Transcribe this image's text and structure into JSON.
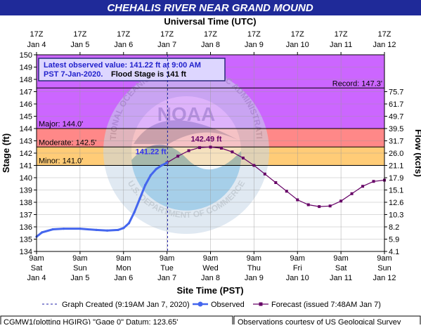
{
  "chart_data": {
    "type": "line",
    "title": "CHEHALIS RIVER NEAR GRAND MOUND",
    "top_axis_label": "Universal Time (UTC)",
    "bottom_axis_label": "Site Time (PST)",
    "ylabel_left": "Stage (ft)",
    "ylabel_right": "Flow (kcfs)",
    "ylim": [
      134,
      150
    ],
    "xlim": [
      "2020-01-04 09:00",
      "2020-01-12 09:00"
    ],
    "y_ticks": [
      134,
      135,
      136,
      137,
      138,
      139,
      140,
      141,
      142,
      143,
      144,
      145,
      146,
      147,
      148,
      149,
      150
    ],
    "flow_ticks": [
      {
        "stage": 134,
        "flow": "4.1"
      },
      {
        "stage": 135,
        "flow": "5.9"
      },
      {
        "stage": 136,
        "flow": "8.2"
      },
      {
        "stage": 137,
        "flow": "10.3"
      },
      {
        "stage": 138,
        "flow": "12.6"
      },
      {
        "stage": 139,
        "flow": "15.1"
      },
      {
        "stage": 140,
        "flow": "17.9"
      },
      {
        "stage": 141,
        "flow": "21.1"
      },
      {
        "stage": 142,
        "flow": "26.0"
      },
      {
        "stage": 143,
        "flow": "31.7"
      },
      {
        "stage": 144,
        "flow": "39.5"
      },
      {
        "stage": 145,
        "flow": "49.7"
      },
      {
        "stage": 146,
        "flow": "61.7"
      },
      {
        "stage": 147,
        "flow": "75.7"
      }
    ],
    "top_ticks": [
      {
        "l1": "17Z",
        "l2": "Jan 4"
      },
      {
        "l1": "17Z",
        "l2": "Jan 5"
      },
      {
        "l1": "17Z",
        "l2": "Jan 6"
      },
      {
        "l1": "17Z",
        "l2": "Jan 7"
      },
      {
        "l1": "17Z",
        "l2": "Jan 8"
      },
      {
        "l1": "17Z",
        "l2": "Jan 9"
      },
      {
        "l1": "17Z",
        "l2": "Jan 10"
      },
      {
        "l1": "17Z",
        "l2": "Jan 11"
      },
      {
        "l1": "17Z",
        "l2": "Jan 12"
      }
    ],
    "bottom_ticks": [
      {
        "l1": "9am",
        "l2": "Sat",
        "l3": "Jan 4"
      },
      {
        "l1": "9am",
        "l2": "Sun",
        "l3": "Jan 5"
      },
      {
        "l1": "9am",
        "l2": "Mon",
        "l3": "Jan 6"
      },
      {
        "l1": "9am",
        "l2": "Tue",
        "l3": "Jan 7"
      },
      {
        "l1": "9am",
        "l2": "Wed",
        "l3": "Jan 8"
      },
      {
        "l1": "9am",
        "l2": "Thu",
        "l3": "Jan 9"
      },
      {
        "l1": "9am",
        "l2": "Fri",
        "l3": "Jan 10"
      },
      {
        "l1": "9am",
        "l2": "Sat",
        "l3": "Jan 11"
      },
      {
        "l1": "9am",
        "l2": "Sun",
        "l3": "Jan 12"
      }
    ],
    "flood_categories": [
      {
        "label": "Record: 147.3'",
        "value": 147.3,
        "color": "#000000"
      },
      {
        "label": "Major: 144.0'",
        "value": 144.0,
        "color": "#cc66ff"
      },
      {
        "label": "Moderate: 142.5'",
        "value": 142.5,
        "color": "#ff8888"
      },
      {
        "label": "Minor: 141.0'",
        "value": 141.0,
        "color": "#ffcc77"
      }
    ],
    "bands": [
      {
        "from": 144.0,
        "to": 150,
        "color": "#cc66ff"
      },
      {
        "from": 142.5,
        "to": 144.0,
        "color": "#ff8888"
      },
      {
        "from": 141.0,
        "to": 142.5,
        "color": "#ffcc77"
      }
    ],
    "annotations": {
      "latest_label": "141.22 ft",
      "crest_label": "142.49 ft",
      "info_line1": "Latest observed value: 141.22 ft at 9:00 AM",
      "info_line2a": "PST 7-Jan-2020.",
      "info_line2b": "Flood Stage is 141 ft"
    },
    "graph_created": "2020-01-07 09:19",
    "series": [
      {
        "name": "Observed",
        "color": "#4466ee",
        "points": [
          [
            "2020-01-04 09:00",
            135.2
          ],
          [
            "2020-01-04 12:00",
            135.55
          ],
          [
            "2020-01-04 18:00",
            135.8
          ],
          [
            "2020-01-05 00:00",
            135.85
          ],
          [
            "2020-01-05 09:00",
            135.85
          ],
          [
            "2020-01-05 18:00",
            135.75
          ],
          [
            "2020-01-06 00:00",
            135.7
          ],
          [
            "2020-01-06 06:00",
            135.75
          ],
          [
            "2020-01-06 09:00",
            135.9
          ],
          [
            "2020-01-06 12:00",
            136.3
          ],
          [
            "2020-01-06 15:00",
            137.2
          ],
          [
            "2020-01-06 18:00",
            138.3
          ],
          [
            "2020-01-06 21:00",
            139.4
          ],
          [
            "2020-01-07 00:00",
            140.2
          ],
          [
            "2020-01-07 03:00",
            140.7
          ],
          [
            "2020-01-07 06:00",
            141.0
          ],
          [
            "2020-01-07 09:00",
            141.22
          ]
        ]
      },
      {
        "name": "Forecast (issued 7:48AM Jan 7)",
        "color": "#660066",
        "points": [
          [
            "2020-01-07 09:00",
            141.22
          ],
          [
            "2020-01-07 15:00",
            141.75
          ],
          [
            "2020-01-07 21:00",
            142.2
          ],
          [
            "2020-01-08 03:00",
            142.45
          ],
          [
            "2020-01-08 09:00",
            142.49
          ],
          [
            "2020-01-08 15:00",
            142.4
          ],
          [
            "2020-01-08 21:00",
            142.1
          ],
          [
            "2020-01-09 03:00",
            141.6
          ],
          [
            "2020-01-09 09:00",
            141.0
          ],
          [
            "2020-01-09 15:00",
            140.3
          ],
          [
            "2020-01-09 21:00",
            139.6
          ],
          [
            "2020-01-10 03:00",
            138.9
          ],
          [
            "2020-01-10 09:00",
            138.2
          ],
          [
            "2020-01-10 15:00",
            137.8
          ],
          [
            "2020-01-10 21:00",
            137.65
          ],
          [
            "2020-01-11 03:00",
            137.7
          ],
          [
            "2020-01-11 09:00",
            138.1
          ],
          [
            "2020-01-11 15:00",
            138.7
          ],
          [
            "2020-01-11 21:00",
            139.3
          ],
          [
            "2020-01-12 03:00",
            139.7
          ],
          [
            "2020-01-12 09:00",
            139.8
          ]
        ]
      }
    ],
    "legend": {
      "created": "Graph Created (9:19AM Jan 7, 2020)",
      "observed": "Observed",
      "forecast": "Forecast (issued 7:48AM Jan 7)"
    },
    "footer_left": "CGMW1(plotting HGIRG) \"Gage 0\" Datum: 123.65'",
    "footer_right": "Observations courtesy of US Geological Survey",
    "watermark_noaa": "NOAA",
    "watermark_ring_top": "NATIONAL OCEANIC AND ATMOSPHERIC ADMINISTRATION",
    "watermark_ring_bottom": "U.S. DEPARTMENT OF COMMERCE"
  }
}
